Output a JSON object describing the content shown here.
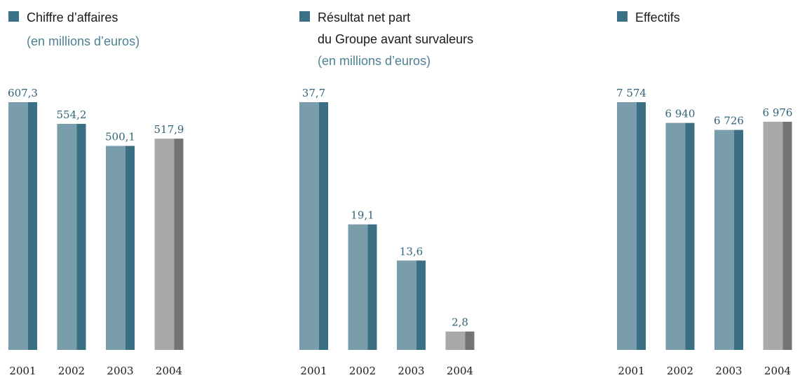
{
  "colors": {
    "bar_front": "#7a9dac",
    "bar_side": "#3a6f84",
    "bar_front_2004": "#a9a9a9",
    "bar_side_2004": "#737573",
    "legend_swatch": "#3a7186",
    "value_text": "#2f6478",
    "subtitle_text": "#4d8193"
  },
  "chart_data": [
    {
      "type": "bar",
      "legend": {
        "lines": [
          "Chiffre d’affaires"
        ],
        "subtitle": "(en millions d’euros)"
      },
      "categories": [
        "2001",
        "2002",
        "2003",
        "2004"
      ],
      "values": [
        607.3,
        554.2,
        500.1,
        517.9
      ],
      "value_labels": [
        "607,3",
        "554,2",
        "500,1",
        "517,9"
      ],
      "ylim": [
        0,
        607.3
      ]
    },
    {
      "type": "bar",
      "legend": {
        "lines": [
          "Résultat net part",
          "du Groupe avant survaleurs"
        ],
        "subtitle": "(en millions d’euros)"
      },
      "categories": [
        "2001",
        "2002",
        "2003",
        "2004"
      ],
      "values": [
        37.7,
        19.1,
        13.6,
        2.8
      ],
      "value_labels": [
        "37,7",
        "19,1",
        "13,6",
        "2,8"
      ],
      "ylim": [
        0,
        37.7
      ]
    },
    {
      "type": "bar",
      "legend": {
        "lines": [
          "Effectifs"
        ],
        "subtitle": ""
      },
      "categories": [
        "2001",
        "2002",
        "2003",
        "2004"
      ],
      "values": [
        7574,
        6940,
        6726,
        6976
      ],
      "value_labels": [
        "7 574",
        "6 940",
        "6 726",
        "6 976"
      ],
      "ylim": [
        0,
        7574
      ]
    }
  ]
}
